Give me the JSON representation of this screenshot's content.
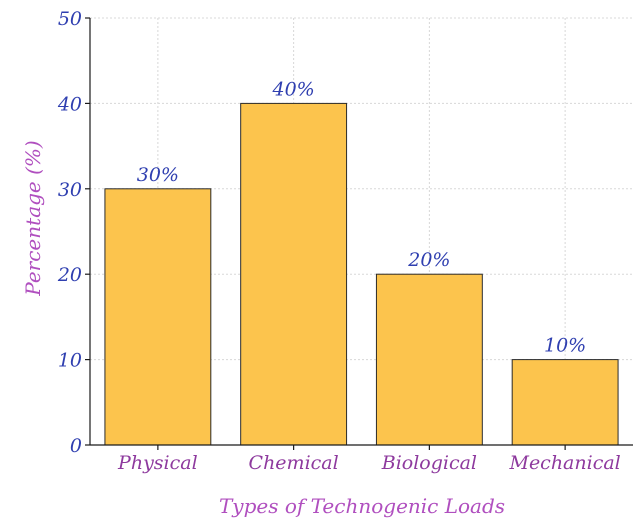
{
  "chart_data": {
    "type": "bar",
    "categories": [
      "Physical",
      "Chemical",
      "Biological",
      "Mechanical"
    ],
    "values": [
      30,
      40,
      20,
      10
    ],
    "data_labels": [
      "30%",
      "40%",
      "20%",
      "10%"
    ],
    "xlabel": "Types of Technogenic Loads",
    "ylabel": "Percentage (%)",
    "ylim": [
      0,
      50
    ],
    "yticks": [
      0,
      10,
      20,
      30,
      40,
      50
    ],
    "grid": true,
    "bar_color": "#fcc44d"
  }
}
